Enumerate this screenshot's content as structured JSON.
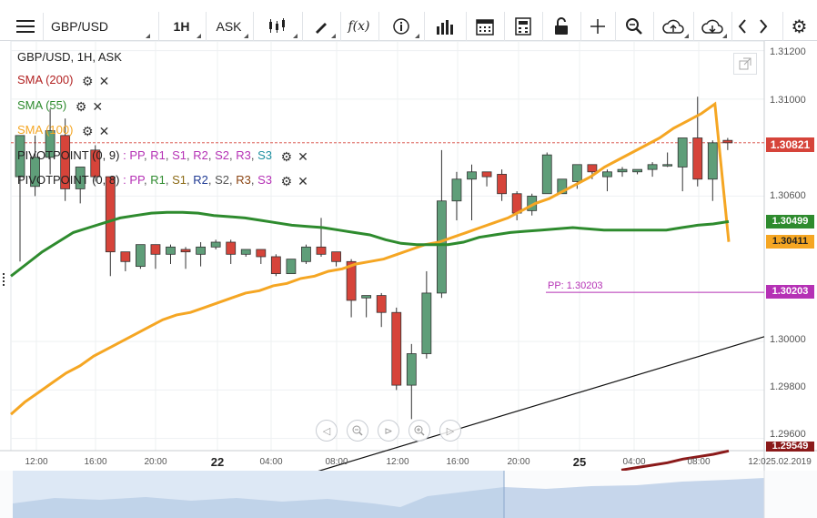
{
  "toolbar": {
    "symbol": "GBP/USD",
    "timeframe": "1H",
    "price_type": "ASK",
    "icons": [
      "menu-icon",
      "candles-icon",
      "draw-icon",
      "fx-icon",
      "info-icon",
      "bar-chart-icon",
      "calendar-icon",
      "calculator-icon",
      "lock-icon",
      "crosshair-icon",
      "zoom-icon",
      "cloud-upload-icon",
      "cloud-download-icon",
      "prev-icon",
      "next-icon",
      "settings-icon"
    ],
    "fx_label": "f(x)"
  },
  "legend": {
    "title": "GBP/USD, 1H, ASK",
    "sma200": "SMA (200)",
    "sma55": "SMA (55)",
    "sma100": "SMA (100)",
    "pivot1_name": "PIVOTPOINT (0, 9)",
    "pivot1_lines": [
      {
        "t": "PP",
        "c": "#b531b5"
      },
      {
        "t": "R1",
        "c": "#b531b5"
      },
      {
        "t": "S1",
        "c": "#b531b5"
      },
      {
        "t": "R2",
        "c": "#b531b5"
      },
      {
        "t": "S2",
        "c": "#b531b5"
      },
      {
        "t": "R3",
        "c": "#b531b5"
      },
      {
        "t": "S3",
        "c": "#1e90a0"
      }
    ],
    "pivot2_name": "PIVOTPOINT (0, 8)",
    "pivot2_lines": [
      {
        "t": "PP",
        "c": "#b531b5"
      },
      {
        "t": "R1",
        "c": "#2e8b2e"
      },
      {
        "t": "S1",
        "c": "#8b6914"
      },
      {
        "t": "R2",
        "c": "#1f3a93"
      },
      {
        "t": "S2",
        "c": "#555555"
      },
      {
        "t": "R3",
        "c": "#8b4513"
      },
      {
        "t": "S3",
        "c": "#b531b5"
      }
    ],
    "colors": {
      "sma200": "#b22222",
      "sma55": "#2e8b2e",
      "sma100": "#f5a623"
    }
  },
  "price_labels": {
    "current": "1.30821",
    "sma55": "1.30499",
    "sma100": "1.30411",
    "pp": "1.30203",
    "sma200": "1.29549"
  },
  "pp_chart_label": "PP: 1.30203",
  "y_ticks": [
    "1.31200",
    "1.31000",
    "1.30600",
    "1.30000",
    "1.29800",
    "1.29600"
  ],
  "x_ticks": [
    "12:00",
    "16:00",
    "20:00",
    "22",
    "04:00",
    "08:00",
    "12:00",
    "16:00",
    "20:00",
    "25",
    "04:00",
    "08:00",
    "12:025.02.2019"
  ],
  "chart_data": {
    "type": "candlestick",
    "title": "GBP/USD, 1H, ASK",
    "ylim": [
      1.2955,
      1.3124
    ],
    "y_ticks": [
      1.312,
      1.31,
      1.306,
      1.3,
      1.298,
      1.296
    ],
    "candles": [
      {
        "o": 1.3068,
        "h": 1.3085,
        "l": 1.3033,
        "c": 1.3085
      },
      {
        "o": 1.3064,
        "h": 1.3085,
        "l": 1.306,
        "c": 1.3076
      },
      {
        "o": 1.3076,
        "h": 1.3096,
        "l": 1.3069,
        "c": 1.3087
      },
      {
        "o": 1.3085,
        "h": 1.3092,
        "l": 1.3058,
        "c": 1.3063
      },
      {
        "o": 1.3063,
        "h": 1.3072,
        "l": 1.3057,
        "c": 1.3072
      },
      {
        "o": 1.3079,
        "h": 1.3081,
        "l": 1.3066,
        "c": 1.3068
      },
      {
        "o": 1.3068,
        "h": 1.3068,
        "l": 1.3027,
        "c": 1.3037
      },
      {
        "o": 1.3037,
        "h": 1.3037,
        "l": 1.3029,
        "c": 1.3033
      },
      {
        "o": 1.3031,
        "h": 1.304,
        "l": 1.303,
        "c": 1.304
      },
      {
        "o": 1.304,
        "h": 1.304,
        "l": 1.303,
        "c": 1.3036
      },
      {
        "o": 1.3036,
        "h": 1.304,
        "l": 1.3032,
        "c": 1.3039
      },
      {
        "o": 1.3038,
        "h": 1.3039,
        "l": 1.303,
        "c": 1.3037
      },
      {
        "o": 1.3036,
        "h": 1.3041,
        "l": 1.3031,
        "c": 1.3039
      },
      {
        "o": 1.3039,
        "h": 1.3042,
        "l": 1.3038,
        "c": 1.3041
      },
      {
        "o": 1.3041,
        "h": 1.3042,
        "l": 1.3032,
        "c": 1.3036
      },
      {
        "o": 1.3036,
        "h": 1.3038,
        "l": 1.3035,
        "c": 1.3038
      },
      {
        "o": 1.3038,
        "h": 1.3038,
        "l": 1.3032,
        "c": 1.3035
      },
      {
        "o": 1.3035,
        "h": 1.3036,
        "l": 1.3027,
        "c": 1.3028
      },
      {
        "o": 1.3028,
        "h": 1.3034,
        "l": 1.3028,
        "c": 1.3034
      },
      {
        "o": 1.3033,
        "h": 1.304,
        "l": 1.3032,
        "c": 1.3039
      },
      {
        "o": 1.3039,
        "h": 1.3051,
        "l": 1.3035,
        "c": 1.3036
      },
      {
        "o": 1.3037,
        "h": 1.3037,
        "l": 1.3031,
        "c": 1.3033
      },
      {
        "o": 1.3033,
        "h": 1.3034,
        "l": 1.301,
        "c": 1.3017
      },
      {
        "o": 1.3018,
        "h": 1.3019,
        "l": 1.301,
        "c": 1.3019
      },
      {
        "o": 1.3019,
        "h": 1.302,
        "l": 1.3006,
        "c": 1.3012
      },
      {
        "o": 1.3012,
        "h": 1.3014,
        "l": 1.298,
        "c": 1.2982
      },
      {
        "o": 1.2982,
        "h": 1.2999,
        "l": 1.2968,
        "c": 1.2995
      },
      {
        "o": 1.2995,
        "h": 1.3029,
        "l": 1.2993,
        "c": 1.302
      },
      {
        "o": 1.302,
        "h": 1.3079,
        "l": 1.3018,
        "c": 1.3058
      },
      {
        "o": 1.3058,
        "h": 1.307,
        "l": 1.305,
        "c": 1.3067
      },
      {
        "o": 1.3067,
        "h": 1.3073,
        "l": 1.305,
        "c": 1.307
      },
      {
        "o": 1.307,
        "h": 1.307,
        "l": 1.3064,
        "c": 1.3068
      },
      {
        "o": 1.3069,
        "h": 1.3071,
        "l": 1.3058,
        "c": 1.3061
      },
      {
        "o": 1.3061,
        "h": 1.3062,
        "l": 1.305,
        "c": 1.3053
      },
      {
        "o": 1.3054,
        "h": 1.3061,
        "l": 1.3052,
        "c": 1.306
      },
      {
        "o": 1.3061,
        "h": 1.3078,
        "l": 1.3061,
        "c": 1.3077
      },
      {
        "o": 1.3061,
        "h": 1.3067,
        "l": 1.3061,
        "c": 1.3067
      },
      {
        "o": 1.3066,
        "h": 1.3073,
        "l": 1.3063,
        "c": 1.3073
      },
      {
        "o": 1.3073,
        "h": 1.3073,
        "l": 1.3067,
        "c": 1.307
      },
      {
        "o": 1.3068,
        "h": 1.3071,
        "l": 1.3062,
        "c": 1.307
      },
      {
        "o": 1.307,
        "h": 1.3072,
        "l": 1.3068,
        "c": 1.3071
      },
      {
        "o": 1.307,
        "h": 1.3071,
        "l": 1.3069,
        "c": 1.3071
      },
      {
        "o": 1.3071,
        "h": 1.3074,
        "l": 1.3068,
        "c": 1.3073
      },
      {
        "o": 1.3073,
        "h": 1.3078,
        "l": 1.3072,
        "c": 1.3073
      },
      {
        "o": 1.3072,
        "h": 1.3084,
        "l": 1.3062,
        "c": 1.3084
      },
      {
        "o": 1.3084,
        "h": 1.3101,
        "l": 1.3064,
        "c": 1.3067
      },
      {
        "o": 1.3067,
        "h": 1.3083,
        "l": 1.3058,
        "c": 1.3082
      },
      {
        "o": 1.3083,
        "h": 1.3084,
        "l": 1.3079,
        "c": 1.3082
      }
    ],
    "sma55": [
      1.3027,
      1.3032,
      1.3037,
      1.3041,
      1.3045,
      1.3047,
      1.3049,
      1.3051,
      1.3052,
      1.3053,
      1.30533,
      1.30533,
      1.3053,
      1.3052,
      1.30515,
      1.3051,
      1.305,
      1.3049,
      1.3048,
      1.30475,
      1.3047,
      1.3046,
      1.3045,
      1.3044,
      1.3042,
      1.30405,
      1.304,
      1.304,
      1.304,
      1.3041,
      1.3043,
      1.3044,
      1.3045,
      1.30455,
      1.3046,
      1.30465,
      1.3047,
      1.30465,
      1.3046,
      1.3046,
      1.3046,
      1.3046,
      1.3046,
      1.3047,
      1.3048,
      1.30485,
      1.30495
    ],
    "sma100": [
      1.297,
      1.2975,
      1.2979,
      1.2983,
      1.2987,
      1.299,
      1.2994,
      1.2997,
      1.3,
      1.3003,
      1.3006,
      1.3009,
      1.3011,
      1.3012,
      1.3014,
      1.3016,
      1.3018,
      1.302,
      1.3021,
      1.3023,
      1.3024,
      1.3026,
      1.3027,
      1.3029,
      1.303,
      1.3032,
      1.3033,
      1.3034,
      1.3036,
      1.3038,
      1.304,
      1.3041,
      1.3043,
      1.3045,
      1.3047,
      1.3049,
      1.3051,
      1.3054,
      1.3057,
      1.3059,
      1.3062,
      1.3065,
      1.3068,
      1.3072,
      1.3075,
      1.3078,
      1.3081,
      1.3084,
      1.3088,
      1.3091,
      1.3094,
      1.3098,
      1.30411
    ],
    "sma200": [
      1.2947,
      1.2948,
      1.2949,
      1.295,
      1.29515,
      1.29525,
      1.29535,
      1.29549
    ],
    "trendline": [
      1.294,
      1.3002
    ],
    "pp_level": 1.30203
  }
}
